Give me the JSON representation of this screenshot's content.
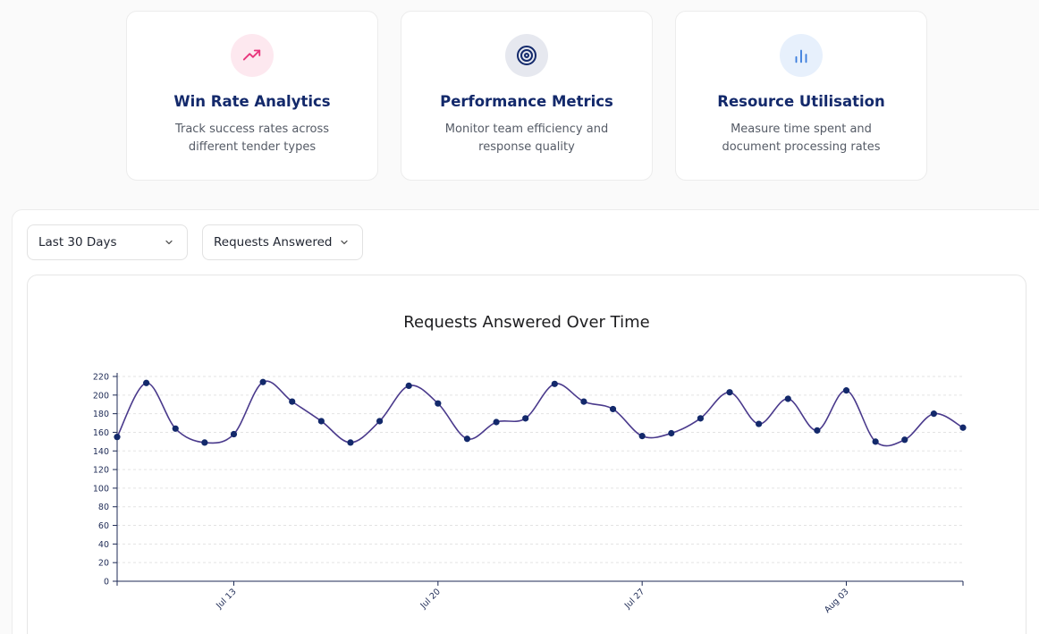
{
  "cards": [
    {
      "title": "Win Rate Analytics",
      "description": "Track success rates across different tender types",
      "icon": "trending-up-icon",
      "color": "#e8347b",
      "bg": "#fde8ef"
    },
    {
      "title": "Performance Metrics",
      "description": "Monitor team efficiency and response quality",
      "icon": "target-icon",
      "color": "#13296b",
      "bg": "#e6e8ef"
    },
    {
      "title": "Resource Utilisation",
      "description": "Measure time spent and document processing rates",
      "icon": "bar-chart-icon",
      "color": "#3b7ddd",
      "bg": "#e7f0fc"
    }
  ],
  "filters": {
    "range": "Last 30 Days",
    "metric": "Requests Answered"
  },
  "chart_data": {
    "type": "line",
    "title": "Requests Answered Over Time",
    "xlabel": "",
    "ylabel": "",
    "ylim": [
      0,
      220
    ],
    "yticks": [
      0,
      20,
      40,
      60,
      80,
      100,
      120,
      140,
      160,
      180,
      200,
      220
    ],
    "xticks": [
      {
        "label": "Jul 13",
        "index": 4
      },
      {
        "label": "Jul 20",
        "index": 11
      },
      {
        "label": "Jul 27",
        "index": 18
      },
      {
        "label": "Aug 03",
        "index": 25
      }
    ],
    "grid": true,
    "line_color": "#4a3a8c",
    "point_color": "#13296b",
    "values": [
      155,
      213,
      164,
      149,
      158,
      214,
      193,
      172,
      149,
      172,
      210,
      191,
      153,
      171,
      175,
      212,
      193,
      185,
      156,
      159,
      175,
      203,
      169,
      196,
      162,
      205,
      150,
      152,
      180,
      165
    ]
  }
}
